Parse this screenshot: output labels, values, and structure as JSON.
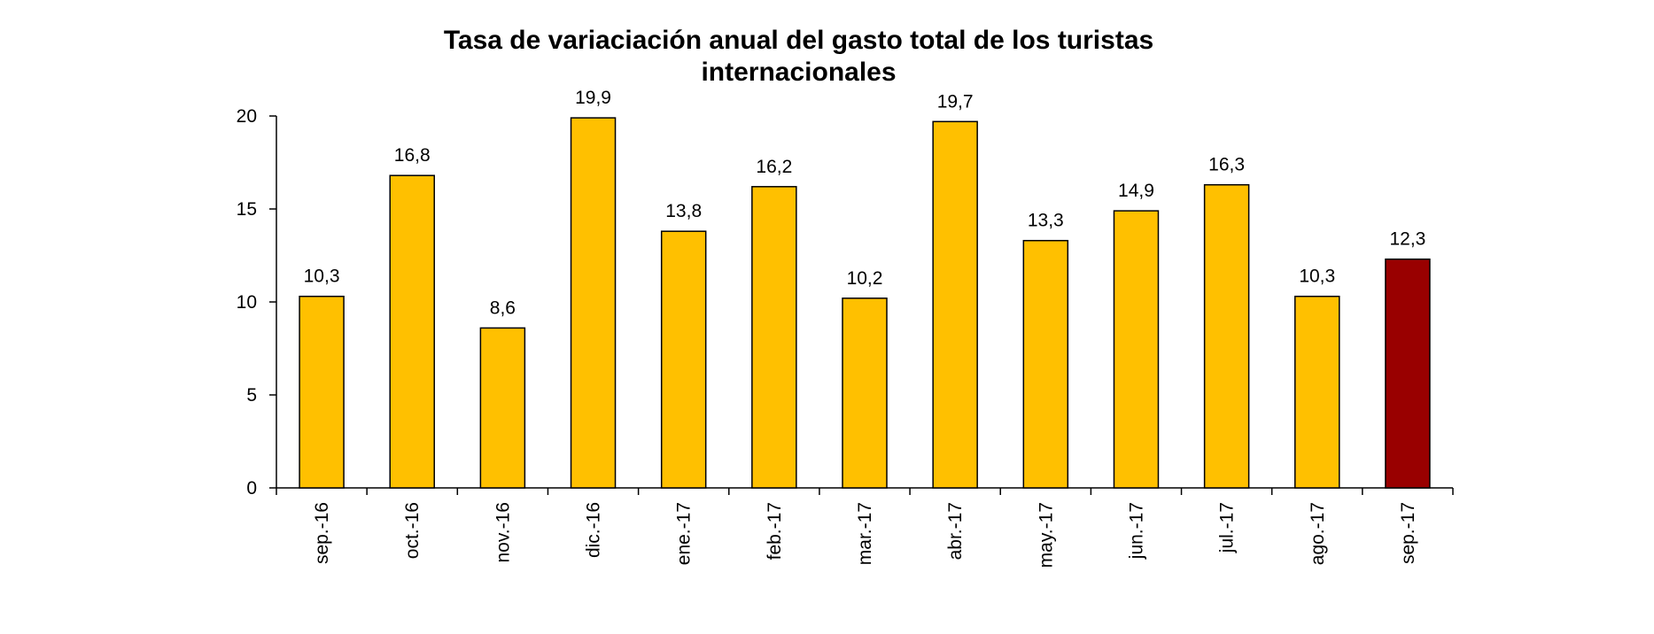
{
  "chart_data": {
    "type": "bar",
    "title": [
      "Tasa de variaciación anual del gasto total de los turistas",
      "internacionales"
    ],
    "categories": [
      "sep.-16",
      "oct.-16",
      "nov.-16",
      "dic.-16",
      "ene.-17",
      "feb.-17",
      "mar.-17",
      "abr.-17",
      "may.-17",
      "jun.-17",
      "jul.-17",
      "ago.-17",
      "sep.-17"
    ],
    "values": [
      10.3,
      16.8,
      8.6,
      19.9,
      13.8,
      16.2,
      10.2,
      19.7,
      13.3,
      14.9,
      16.3,
      10.3,
      12.3
    ],
    "value_labels": [
      "10,3",
      "16,8",
      "8,6",
      "19,9",
      "13,8",
      "16,2",
      "10,2",
      "19,7",
      "13,3",
      "14,9",
      "16,3",
      "10,3",
      "12,3"
    ],
    "yticks": [
      "0",
      "5",
      "10",
      "15",
      "20"
    ],
    "ylim": [
      0,
      20
    ],
    "grid": false,
    "legend": "none",
    "colors": {
      "bar": "#FFC000",
      "highlight": "#990000",
      "outline": "#000000"
    },
    "highlight_category": "sep.-17"
  }
}
